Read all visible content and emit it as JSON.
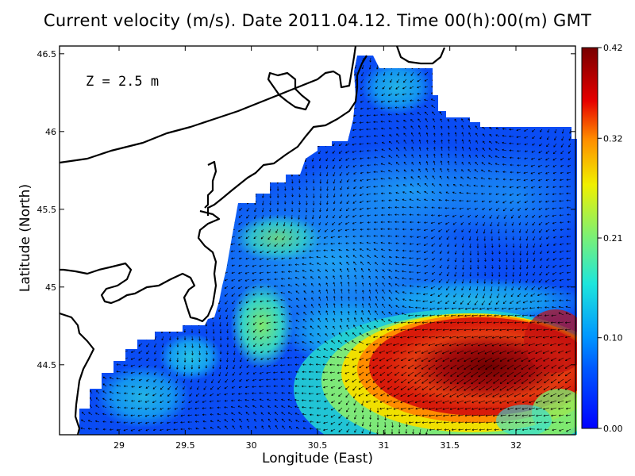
{
  "title": "Current velocity (m/s). Date 2011.04.12. Time 00(h):00(m) GMT",
  "depth_label": "Z = 2.5 m",
  "colors": {
    "sea_low": "#0a3cff",
    "sea_mid": "#18c8f0",
    "sea_high": "#8a0c0c",
    "coastline": "#000000",
    "land": "#ffffff",
    "arrows": "#000000"
  },
  "chart_data": {
    "type": "heatmap",
    "title": "Current velocity (m/s). Date 2011.04.12. Time 00(h):00(m) GMT",
    "xlabel": "Longitude (East)",
    "ylabel": "Latitude (North)",
    "xlim": [
      28.55,
      32.45
    ],
    "ylim": [
      44.05,
      46.55
    ],
    "x_ticks": [
      "29",
      "29.5",
      "30",
      "30.5",
      "31",
      "31.5",
      "32"
    ],
    "y_ticks": [
      "44.5",
      "45",
      "45.5",
      "46",
      "46.5"
    ],
    "colorbar": {
      "label": "",
      "range": [
        0.0,
        0.42
      ],
      "ticks": [
        "0.00",
        "0.10",
        "0.21",
        "0.32",
        "0.42"
      ],
      "colormap": [
        "#0000ff",
        "#0096ff",
        "#1ee6dc",
        "#78f078",
        "#f0f000",
        "#ff8c00",
        "#e60000",
        "#780000"
      ]
    },
    "features": {
      "vector_field": "current velocity arrows over the sea",
      "strong_current_region": "southeast corner, velocities near 0.40",
      "shelf_region": "northwest shelf, velocities near 0.00–0.10"
    }
  }
}
